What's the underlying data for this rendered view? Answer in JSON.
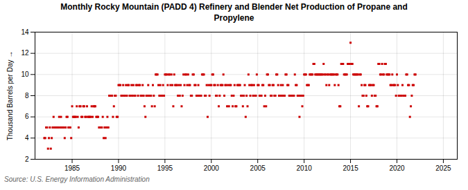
{
  "chart_data": {
    "type": "scatter",
    "title": "Monthly Rocky Mountain (PADD 4) Refinery and Blender Net Production of Propane and\nPropylene",
    "ylabel": "Thousand Barrels per Day",
    "annotations": [
      "Source: U.S. Energy Information Administration"
    ],
    "color": "#cc0000",
    "marker": "square",
    "grid": true,
    "xlim": [
      1981.0,
      2026.5
    ],
    "ylim": [
      2,
      14
    ],
    "yticks": [
      2,
      4,
      6,
      8,
      10,
      12,
      14
    ],
    "xticks": [
      1985,
      1990,
      1995,
      2000,
      2005,
      2010,
      2015,
      2020,
      2025
    ],
    "x": [
      1982.0,
      1982.1,
      1982.2,
      1982.3,
      1982.4,
      1982.5,
      1982.6,
      1982.7,
      1982.8,
      1982.9,
      1983.0,
      1983.1,
      1983.2,
      1983.3,
      1983.4,
      1983.5,
      1983.6,
      1983.7,
      1983.8,
      1983.9,
      1984.0,
      1984.1,
      1984.2,
      1984.3,
      1984.4,
      1984.5,
      1984.6,
      1984.7,
      1984.8,
      1984.9,
      1985.0,
      1985.1,
      1985.2,
      1985.3,
      1985.4,
      1985.5,
      1985.6,
      1985.7,
      1985.8,
      1985.9,
      1986.0,
      1986.1,
      1986.2,
      1986.3,
      1986.4,
      1986.5,
      1986.6,
      1986.7,
      1986.8,
      1986.9,
      1987.0,
      1987.1,
      1987.2,
      1987.3,
      1987.4,
      1987.5,
      1987.6,
      1987.7,
      1987.8,
      1987.9,
      1988.0,
      1988.1,
      1988.2,
      1988.3,
      1988.4,
      1988.5,
      1988.6,
      1988.7,
      1988.8,
      1988.9,
      1989.0,
      1989.1,
      1989.2,
      1989.3,
      1989.4,
      1989.5,
      1989.6,
      1989.7,
      1989.8,
      1989.9,
      1990.0,
      1990.1,
      1990.2,
      1990.3,
      1990.4,
      1990.5,
      1990.6,
      1990.7,
      1990.8,
      1990.9,
      1991.0,
      1991.1,
      1991.2,
      1991.3,
      1991.4,
      1991.5,
      1991.6,
      1991.7,
      1991.8,
      1991.9,
      1992.0,
      1992.1,
      1992.2,
      1992.3,
      1992.4,
      1992.5,
      1992.6,
      1992.7,
      1992.8,
      1992.9,
      1993.0,
      1993.1,
      1993.2,
      1993.3,
      1993.4,
      1993.5,
      1993.6,
      1993.7,
      1993.8,
      1993.9,
      1994.0,
      1994.1,
      1994.2,
      1994.3,
      1994.4,
      1994.5,
      1994.6,
      1994.7,
      1994.8,
      1994.9,
      1995.0,
      1995.1,
      1995.2,
      1995.3,
      1995.4,
      1995.5,
      1995.6,
      1995.7,
      1995.8,
      1995.9,
      1996.0,
      1996.1,
      1996.2,
      1996.3,
      1996.4,
      1996.5,
      1996.6,
      1996.7,
      1996.8,
      1996.9,
      1997.0,
      1997.1,
      1997.2,
      1997.3,
      1997.4,
      1997.5,
      1997.6,
      1997.7,
      1997.8,
      1997.9,
      1998.0,
      1998.1,
      1998.2,
      1998.3,
      1998.4,
      1998.5,
      1998.6,
      1998.7,
      1998.8,
      1998.9,
      1999.0,
      1999.1,
      1999.2,
      1999.3,
      1999.4,
      1999.5,
      1999.6,
      1999.7,
      1999.8,
      1999.9,
      2000.0,
      2000.1,
      2000.2,
      2000.3,
      2000.4,
      2000.5,
      2000.6,
      2000.7,
      2000.8,
      2000.9,
      2001.0,
      2001.1,
      2001.2,
      2001.3,
      2001.4,
      2001.5,
      2001.6,
      2001.7,
      2001.8,
      2001.9,
      2002.0,
      2002.1,
      2002.2,
      2002.3,
      2002.4,
      2002.5,
      2002.6,
      2002.7,
      2002.8,
      2002.9,
      2003.0,
      2003.1,
      2003.2,
      2003.3,
      2003.4,
      2003.5,
      2003.6,
      2003.7,
      2003.8,
      2003.9,
      2004.0,
      2004.1,
      2004.2,
      2004.3,
      2004.4,
      2004.5,
      2004.6,
      2004.7,
      2004.8,
      2004.9,
      2005.0,
      2005.1,
      2005.2,
      2005.3,
      2005.4,
      2005.5,
      2005.6,
      2005.7,
      2005.8,
      2005.9,
      2006.0,
      2006.1,
      2006.2,
      2006.3,
      2006.4,
      2006.5,
      2006.6,
      2006.7,
      2006.8,
      2006.9,
      2007.0,
      2007.1,
      2007.2,
      2007.3,
      2007.4,
      2007.5,
      2007.6,
      2007.7,
      2007.8,
      2007.9,
      2008.0,
      2008.1,
      2008.2,
      2008.3,
      2008.4,
      2008.5,
      2008.6,
      2008.7,
      2008.8,
      2008.9,
      2009.0,
      2009.1,
      2009.2,
      2009.3,
      2009.4,
      2009.5,
      2009.6,
      2009.7,
      2009.8,
      2009.9,
      2010.0,
      2010.1,
      2010.2,
      2010.3,
      2010.4,
      2010.5,
      2010.6,
      2010.7,
      2010.8,
      2010.9,
      2011.0,
      2011.1,
      2011.2,
      2011.3,
      2011.4,
      2011.5,
      2011.6,
      2011.7,
      2011.8,
      2011.9,
      2012.0,
      2012.1,
      2012.2,
      2012.3,
      2012.4,
      2012.5,
      2012.6,
      2012.7,
      2012.8,
      2012.9,
      2013.0,
      2013.1,
      2013.2,
      2013.3,
      2013.4,
      2013.5,
      2013.6,
      2013.7,
      2013.8,
      2013.9,
      2014.0,
      2014.1,
      2014.2,
      2014.3,
      2014.4,
      2014.5,
      2014.6,
      2014.7,
      2014.8,
      2014.9,
      2015.0,
      2015.1,
      2015.2,
      2015.3,
      2015.4,
      2015.5,
      2015.6,
      2015.7,
      2015.8,
      2015.9,
      2016.0,
      2016.1,
      2016.2,
      2016.3,
      2016.4,
      2016.5,
      2016.6,
      2016.7,
      2016.8,
      2016.9,
      2017.0,
      2017.1,
      2017.2,
      2017.3,
      2017.4,
      2017.5,
      2017.6,
      2017.7,
      2017.8,
      2017.9,
      2018.0,
      2018.1,
      2018.2,
      2018.3,
      2018.4,
      2018.5,
      2018.6,
      2018.7,
      2018.8,
      2018.9,
      2019.0,
      2019.1,
      2019.2,
      2019.3,
      2019.4,
      2019.5,
      2019.6,
      2019.7,
      2019.8,
      2019.9,
      2020.0,
      2020.1,
      2020.2,
      2020.3,
      2020.4,
      2020.5,
      2020.6,
      2020.7,
      2020.8,
      2020.9,
      2021.0,
      2021.1,
      2021.2,
      2021.3,
      2021.4,
      2021.5,
      2021.6,
      2021.7,
      2021.8,
      2021.9,
      2022.0
    ],
    "values": [
      4.0,
      4.0,
      5.0,
      5.0,
      3.0,
      4.0,
      5.0,
      3.0,
      4.0,
      5.0,
      6.0,
      5.0,
      5.0,
      5.0,
      5.0,
      5.0,
      6.0,
      5.0,
      6.0,
      5.0,
      5.0,
      5.0,
      4.0,
      5.0,
      6.0,
      6.0,
      5.0,
      5.0,
      5.0,
      4.0,
      7.0,
      6.0,
      6.0,
      6.0,
      6.0,
      7.0,
      6.0,
      5.0,
      7.0,
      7.0,
      6.0,
      6.0,
      7.0,
      7.0,
      6.0,
      6.0,
      7.0,
      6.0,
      6.0,
      6.0,
      6.0,
      7.0,
      6.0,
      7.0,
      7.0,
      7.0,
      6.0,
      6.0,
      6.0,
      5.0,
      5.0,
      5.0,
      5.0,
      6.0,
      4.0,
      5.0,
      4.0,
      5.0,
      6.0,
      5.0,
      8.0,
      8.0,
      8.0,
      8.0,
      6.0,
      7.0,
      8.0,
      8.0,
      6.0,
      6.0,
      9.0,
      9.0,
      9.0,
      8.0,
      8.0,
      9.0,
      8.0,
      8.0,
      9.0,
      8.0,
      9.0,
      9.0,
      8.0,
      8.0,
      9.0,
      8.0,
      9.0,
      8.0,
      8.0,
      9.0,
      9.0,
      8.0,
      9.0,
      9.0,
      8.0,
      8.0,
      9.0,
      8.0,
      7.0,
      6.0,
      8.0,
      8.0,
      9.0,
      8.0,
      8.0,
      8.0,
      7.0,
      9.0,
      8.0,
      7.0,
      10.0,
      10.0,
      10.0,
      9.0,
      8.0,
      9.0,
      8.0,
      8.0,
      9.0,
      8.0,
      10.0,
      10.0,
      10.0,
      9.0,
      10.0,
      10.0,
      9.0,
      10.0,
      9.0,
      7.0,
      10.0,
      9.0,
      9.0,
      9.0,
      8.0,
      9.0,
      8.0,
      9.0,
      7.0,
      8.0,
      10.0,
      9.0,
      10.0,
      10.0,
      9.0,
      10.0,
      9.0,
      9.0,
      8.0,
      8.0,
      10.0,
      10.0,
      9.0,
      9.0,
      8.0,
      8.0,
      9.0,
      8.0,
      8.0,
      8.0,
      10.0,
      10.0,
      10.0,
      8.0,
      8.0,
      9.0,
      6.0,
      9.0,
      8.0,
      9.0,
      9.0,
      10.0,
      10.0,
      9.0,
      9.0,
      8.0,
      8.0,
      9.0,
      7.0,
      8.0,
      9.0,
      9.0,
      9.0,
      10.0,
      8.0,
      9.0,
      9.0,
      7.0,
      9.0,
      7.0,
      9.0,
      9.0,
      8.0,
      7.0,
      8.0,
      9.0,
      7.0,
      7.0,
      9.0,
      9.0,
      9.0,
      9.0,
      8.0,
      8.0,
      7.0,
      8.0,
      9.0,
      6.0,
      8.0,
      7.0,
      10.0,
      9.0,
      8.0,
      9.0,
      9.0,
      8.0,
      9.0,
      8.0,
      8.0,
      10.0,
      9.0,
      9.0,
      8.0,
      8.0,
      8.0,
      9.0,
      9.0,
      7.0,
      8.0,
      7.0,
      10.0,
      10.0,
      9.0,
      9.0,
      8.0,
      8.0,
      9.0,
      9.0,
      8.0,
      8.0,
      10.0,
      10.0,
      9.0,
      8.0,
      8.0,
      9.0,
      8.0,
      9.0,
      8.0,
      8.0,
      10.0,
      10.0,
      9.0,
      9.0,
      8.0,
      8.0,
      8.0,
      8.0,
      8.0,
      8.0,
      10.0,
      9.0,
      9.0,
      8.0,
      8.0,
      6.0,
      8.0,
      8.0,
      7.0,
      8.0,
      10.0,
      10.0,
      10.0,
      9.0,
      9.0,
      9.0,
      10.0,
      10.0,
      10.0,
      10.0,
      11.0,
      11.0,
      10.0,
      10.0,
      10.0,
      10.0,
      10.0,
      10.0,
      10.0,
      10.0,
      10.0,
      11.0,
      10.0,
      10.0,
      9.0,
      10.0,
      10.0,
      9.0,
      10.0,
      10.0,
      10.0,
      10.0,
      10.0,
      9.0,
      10.0,
      10.0,
      10.0,
      9.0,
      7.0,
      7.0,
      11.0,
      11.0,
      11.0,
      10.0,
      10.0,
      10.0,
      10.0,
      11.0,
      11.0,
      11.0,
      13.0,
      11.0,
      11.0,
      10.0,
      10.0,
      10.0,
      10.0,
      10.0,
      10.0,
      7.0,
      10.0,
      10.0,
      9.0,
      8.0,
      8.0,
      9.0,
      9.0,
      8.0,
      7.0,
      7.0,
      9.0,
      9.0,
      9.0,
      8.0,
      9.0,
      9.0,
      8.0,
      8.0,
      7.0,
      7.0,
      11.0,
      11.0,
      10.0,
      10.0,
      11.0,
      10.0,
      10.0,
      11.0,
      11.0,
      10.0,
      10.0,
      10.0,
      10.0,
      9.0,
      9.0,
      10.0,
      9.0,
      9.0,
      9.0,
      8.0,
      10.0,
      9.0,
      8.0,
      8.0,
      8.0,
      8.0,
      9.0,
      8.0,
      8.0,
      8.0,
      10.0,
      10.0,
      9.0,
      9.0,
      6.0,
      7.0,
      8.0,
      9.0,
      9.0,
      10.0,
      10.0
    ]
  }
}
